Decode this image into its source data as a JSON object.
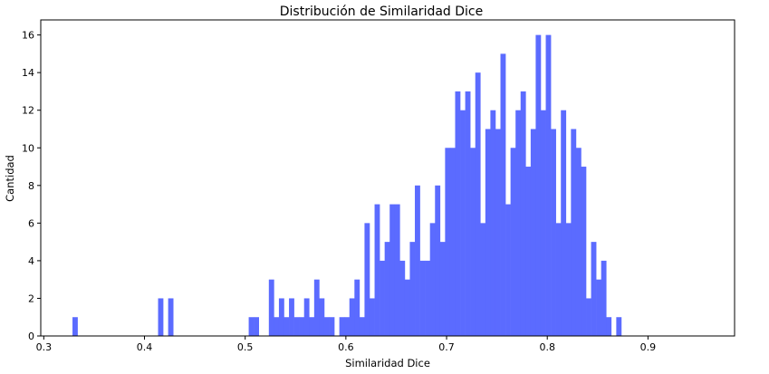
{
  "chart_data": {
    "type": "bar",
    "title": "Distribución de Similaridad Dice",
    "xlabel": "Similaridad Dice",
    "ylabel": "Cantidad",
    "xlim": [
      0.297,
      0.986
    ],
    "ylim": [
      0,
      16.8
    ],
    "xticks": [
      0.3,
      0.4,
      0.5,
      0.6,
      0.7,
      0.8,
      0.9
    ],
    "xtick_labels": [
      "0.3",
      "0.4",
      "0.5",
      "0.6",
      "0.7",
      "0.8",
      "0.9"
    ],
    "yticks": [
      0,
      2,
      4,
      6,
      8,
      10,
      12,
      14,
      16
    ],
    "ytick_labels": [
      "0",
      "2",
      "4",
      "6",
      "8",
      "10",
      "12",
      "14",
      "16"
    ],
    "grid": false,
    "bar_color": "#5b6bff",
    "bins": {
      "start": 0.3285,
      "width": 0.005,
      "counts": [
        1,
        0,
        0,
        0,
        0,
        0,
        0,
        0,
        0,
        0,
        0,
        0,
        0,
        0,
        0,
        0,
        0,
        2,
        0,
        2,
        0,
        0,
        0,
        0,
        0,
        0,
        0,
        0,
        0,
        0,
        0,
        0,
        0,
        0,
        0,
        1,
        1,
        0,
        0,
        3,
        1,
        2,
        1,
        2,
        1,
        1,
        2,
        1,
        3,
        2,
        1,
        1,
        0,
        1,
        1,
        2,
        3,
        1,
        6,
        2,
        7,
        4,
        5,
        7,
        7,
        4,
        3,
        5,
        8,
        4,
        4,
        6,
        8,
        5,
        10,
        10,
        13,
        12,
        13,
        10,
        14,
        6,
        11,
        12,
        11,
        15,
        7,
        10,
        12,
        13,
        9,
        11,
        16,
        12,
        16,
        11,
        6,
        12,
        6,
        11,
        10,
        9,
        2,
        5,
        3,
        4,
        1,
        0,
        1
      ]
    }
  }
}
